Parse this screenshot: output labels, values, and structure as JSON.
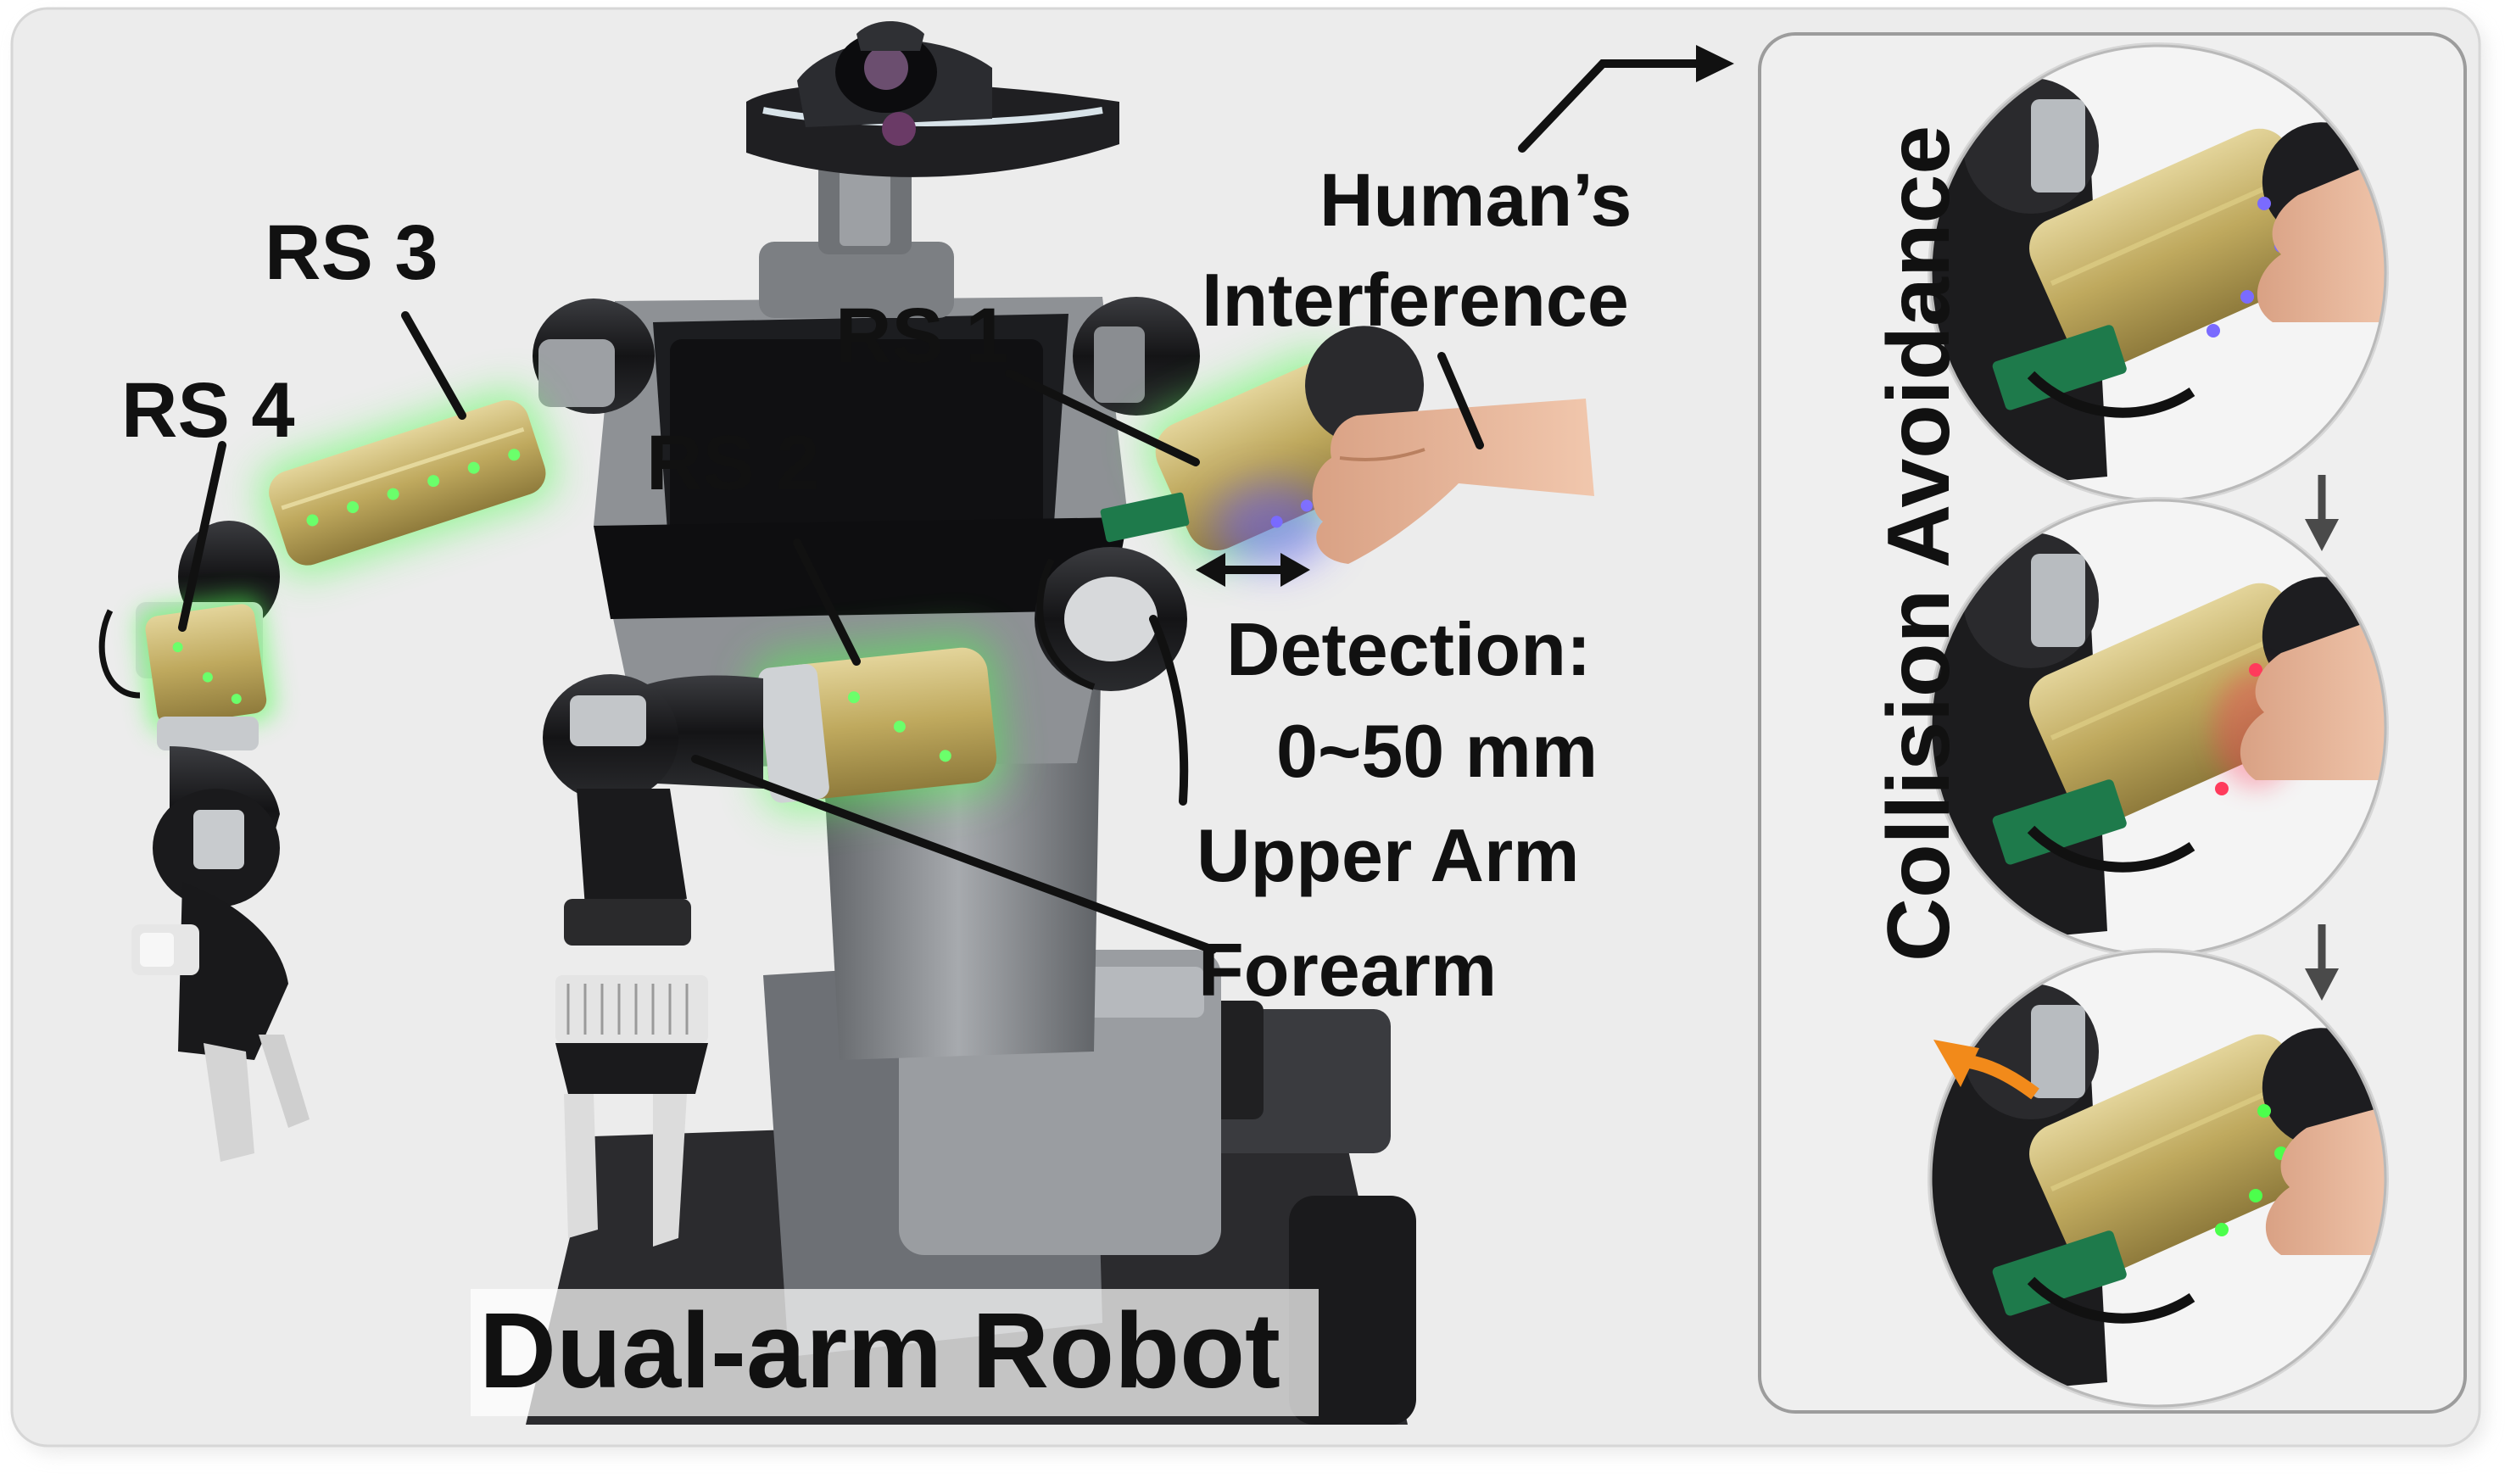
{
  "labels": {
    "rs1": "RS 1",
    "rs2": "RS 2",
    "rs3": "RS 3",
    "rs4": "RS 4",
    "humans_line1": "Human’s",
    "humans_line2": "Interference",
    "detection_line1": "Detection:",
    "detection_line2": "0~50 mm",
    "upper_arm": "Upper Arm",
    "forearm": "Forearm"
  },
  "title": "Dual-arm Robot",
  "side_panel": {
    "title": "Collision Avoidance"
  },
  "colors": {
    "background": "#ececec",
    "robot_dark": "#1f1f22",
    "robot_gray": "#7c7f83",
    "sensor_skin": "#c9b56e",
    "sensor_glow": "#4cff4c",
    "led_blue": "#7a6bff",
    "led_red": "#ff3b5c",
    "avoid_arrow": "#f28a1a",
    "pcb_green": "#1e7a4b"
  }
}
